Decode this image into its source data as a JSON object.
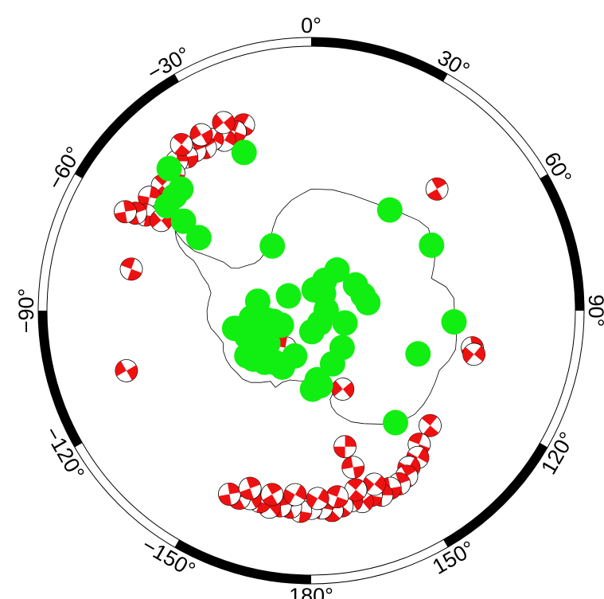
{
  "map": {
    "projection": "south-polar-stereographic",
    "colors": {
      "frame_dark": "#000000",
      "frame_light": "#ffffff",
      "coastline": "#000000",
      "station": "#11ee11",
      "beachball_fill": "#ee1111",
      "beachball_outline": "#000000"
    },
    "longitude_labels": [
      {
        "lon": 0,
        "text": "0°"
      },
      {
        "lon": 30,
        "text": "30°"
      },
      {
        "lon": 60,
        "text": "60°"
      },
      {
        "lon": 90,
        "text": "90°"
      },
      {
        "lon": 120,
        "text": "120°"
      },
      {
        "lon": 150,
        "text": "150°"
      },
      {
        "lon": 180,
        "text": "180°"
      },
      {
        "lon": -150,
        "text": "−150°"
      },
      {
        "lon": -120,
        "text": "−120°"
      },
      {
        "lon": -90,
        "text": "−90°"
      },
      {
        "lon": -60,
        "text": "−60°"
      },
      {
        "lon": -30,
        "text": "−30°"
      }
    ],
    "stations": [
      {
        "lon": -23.0,
        "lat": -62.0
      },
      {
        "lon": -45.0,
        "lat": -57.5
      },
      {
        "lon": -50.0,
        "lat": -61.0
      },
      {
        "lon": -47.0,
        "lat": -61.0
      },
      {
        "lon": -54.0,
        "lat": -61.0
      },
      {
        "lon": -55.0,
        "lat": -64.5
      },
      {
        "lon": -57.0,
        "lat": -68.0
      },
      {
        "lon": -31.0,
        "lat": -77.5
      },
      {
        "lon": 38.0,
        "lat": -69.0
      },
      {
        "lon": 61.5,
        "lat": -67.5
      },
      {
        "lon": 8.0,
        "lat": -86.5
      },
      {
        "lon": 24.0,
        "lat": -84.5
      },
      {
        "lon": 32.5,
        "lat": -82.0
      },
      {
        "lon": -57.0,
        "lat": -85.5
      },
      {
        "lon": -106.0,
        "lat": -83.5
      },
      {
        "lon": -127.0,
        "lat": -81.0
      },
      {
        "lon": -80.0,
        "lat": -81.0
      },
      {
        "lon": 88.0,
        "lat": -87.5
      },
      {
        "lon": 36.0,
        "lat": -86.5
      },
      {
        "lon": 60.0,
        "lat": -81.5
      },
      {
        "lon": 73.5,
        "lat": -81.0
      },
      {
        "lon": -107.0,
        "lat": -79.0
      },
      {
        "lon": -102.0,
        "lat": -82.5
      },
      {
        "lon": -115.0,
        "lat": -81.5
      },
      {
        "lon": -97.0,
        "lat": -80.0
      },
      {
        "lon": -112.0,
        "lat": -78.5
      },
      {
        "lon": -120.0,
        "lat": -78.5
      },
      {
        "lon": -103.0,
        "lat": -77.0
      },
      {
        "lon": -125.0,
        "lat": -77.0
      },
      {
        "lon": -130.0,
        "lat": -77.5
      },
      {
        "lon": -138.0,
        "lat": -78.5
      },
      {
        "lon": -145.0,
        "lat": -79.5
      },
      {
        "lon": -153.0,
        "lat": -79.5
      },
      {
        "lon": -116.0,
        "lat": -84.5
      },
      {
        "lon": 145.0,
        "lat": -87.5
      },
      {
        "lon": 178.0,
        "lat": -86.5
      },
      {
        "lon": -160.0,
        "lat": -82.0
      },
      {
        "lon": 110.0,
        "lat": -84.0
      },
      {
        "lon": 82.0,
        "lat": -80.5
      },
      {
        "lon": 140.0,
        "lat": -82.0
      },
      {
        "lon": 158.0,
        "lat": -80.5
      },
      {
        "lon": 173.0,
        "lat": -77.5
      },
      {
        "lon": 175.0,
        "lat": -78.5
      },
      {
        "lon": 179.0,
        "lat": -77.0
      },
      {
        "lon": 112.0,
        "lat": -71.0
      },
      {
        "lon": 94.5,
        "lat": -66.5
      },
      {
        "lon": 143.0,
        "lat": -67.0
      }
    ],
    "focal_mechanisms": [
      {
        "lon": -20,
        "lat": -58.0,
        "strike": 30
      },
      {
        "lon": -23,
        "lat": -58.5,
        "strike": 200
      },
      {
        "lon": -27,
        "lat": -59.0,
        "strike": 120
      },
      {
        "lon": -30,
        "lat": -58.0,
        "strike": 300
      },
      {
        "lon": -33,
        "lat": -58.5,
        "strike": 60
      },
      {
        "lon": -36,
        "lat": -58.0,
        "strike": 250
      },
      {
        "lon": -39,
        "lat": -58.0,
        "strike": 170
      },
      {
        "lon": -42,
        "lat": -57.5,
        "strike": 90
      },
      {
        "lon": -45,
        "lat": -58.5,
        "strike": 10
      },
      {
        "lon": -25,
        "lat": -56.5,
        "strike": 140
      },
      {
        "lon": -32,
        "lat": -56.5,
        "strike": 330
      },
      {
        "lon": -38,
        "lat": -56.0,
        "strike": 220
      },
      {
        "lon": -50,
        "lat": -58.5,
        "strike": 45
      },
      {
        "lon": -55,
        "lat": -58.0,
        "strike": 280
      },
      {
        "lon": -57,
        "lat": -61.0,
        "strike": 100
      },
      {
        "lon": -60,
        "lat": -59.0,
        "strike": 190
      },
      {
        "lon": -61,
        "lat": -57.5,
        "strike": 70
      },
      {
        "lon": -62,
        "lat": -56.0,
        "strike": 260
      },
      {
        "lon": -59,
        "lat": -61.5,
        "strike": 320
      },
      {
        "lon": -77,
        "lat": -60.0,
        "strike": 20
      },
      {
        "lon": -108,
        "lat": -58.5,
        "strike": 150
      },
      {
        "lon": 46,
        "lat": -61.5,
        "strike": 240
      },
      {
        "lon": 103,
        "lat": -63.0,
        "strike": 80
      },
      {
        "lon": 105,
        "lat": -62.5,
        "strike": 310
      },
      {
        "lon": 134,
        "lat": -63.0,
        "strike": 40
      },
      {
        "lon": 141,
        "lat": -62.0,
        "strike": 200
      },
      {
        "lon": 144,
        "lat": -60.5,
        "strike": 120
      },
      {
        "lon": 148,
        "lat": -60.0,
        "strike": 300
      },
      {
        "lon": 150,
        "lat": -59.0,
        "strike": 60
      },
      {
        "lon": 153,
        "lat": -58.5,
        "strike": 250
      },
      {
        "lon": 156,
        "lat": -58.5,
        "strike": 170
      },
      {
        "lon": 159,
        "lat": -58.0,
        "strike": 90
      },
      {
        "lon": 162,
        "lat": -58.5,
        "strike": 10
      },
      {
        "lon": 165,
        "lat": -58.0,
        "strike": 140
      },
      {
        "lon": 168,
        "lat": -58.5,
        "strike": 330
      },
      {
        "lon": 171,
        "lat": -58.0,
        "strike": 220
      },
      {
        "lon": 174,
        "lat": -57.5,
        "strike": 45
      },
      {
        "lon": 177,
        "lat": -58.0,
        "strike": 280
      },
      {
        "lon": -180,
        "lat": -58.0,
        "strike": 100
      },
      {
        "lon": -177,
        "lat": -57.5,
        "strike": 190
      },
      {
        "lon": -174,
        "lat": -58.0,
        "strike": 70
      },
      {
        "lon": -171,
        "lat": -58.0,
        "strike": 260
      },
      {
        "lon": -168,
        "lat": -57.5,
        "strike": 320
      },
      {
        "lon": -165,
        "lat": -58.0,
        "strike": 20
      },
      {
        "lon": -162,
        "lat": -58.0,
        "strike": 150
      },
      {
        "lon": -159,
        "lat": -57.5,
        "strike": 240
      },
      {
        "lon": -156,
        "lat": -57.5,
        "strike": 80
      },
      {
        "lon": 160,
        "lat": -60.0,
        "strike": 310
      },
      {
        "lon": 166,
        "lat": -60.0,
        "strike": 40
      },
      {
        "lon": 172,
        "lat": -59.5,
        "strike": 200
      },
      {
        "lon": 178,
        "lat": -59.5,
        "strike": 120
      },
      {
        "lon": -175,
        "lat": -60.0,
        "strike": 300
      },
      {
        "lon": -168,
        "lat": -59.5,
        "strike": 60
      },
      {
        "lon": -161,
        "lat": -59.5,
        "strike": 250
      },
      {
        "lon": 165,
        "lat": -63.5,
        "strike": 170
      },
      {
        "lon": 166,
        "lat": -67.0,
        "strike": 90
      },
      {
        "lon": -145,
        "lat": -82.5,
        "strike": 10
      },
      {
        "lon": 158,
        "lat": -76.0,
        "strike": 140
      }
    ],
    "coastline": [
      [
        0,
        -70.0
      ],
      [
        10,
        -69.8
      ],
      [
        20,
        -69.8
      ],
      [
        30,
        -69.5
      ],
      [
        40,
        -68.5
      ],
      [
        50,
        -67.0
      ],
      [
        55,
        -66.5
      ],
      [
        60,
        -67.2
      ],
      [
        65,
        -67.5
      ],
      [
        70,
        -68.5
      ],
      [
        75,
        -69.5
      ],
      [
        80,
        -67.5
      ],
      [
        85,
        -66.5
      ],
      [
        90,
        -66.5
      ],
      [
        95,
        -66.3
      ],
      [
        100,
        -65.8
      ],
      [
        105,
        -65.5
      ],
      [
        110,
        -66.0
      ],
      [
        115,
        -66.8
      ],
      [
        120,
        -66.5
      ],
      [
        125,
        -66.2
      ],
      [
        130,
        -66.0
      ],
      [
        135,
        -66.0
      ],
      [
        140,
        -66.5
      ],
      [
        145,
        -67.2
      ],
      [
        150,
        -68.5
      ],
      [
        155,
        -69.5
      ],
      [
        160,
        -70.5
      ],
      [
        163,
        -71.5
      ],
      [
        166,
        -72.5
      ],
      [
        168,
        -73.8
      ],
      [
        168,
        -75.0
      ],
      [
        163,
        -76.5
      ],
      [
        165,
        -77.5
      ],
      [
        168,
        -78.0
      ],
      [
        172,
        -78.3
      ],
      [
        176,
        -78.5
      ],
      [
        180,
        -78.4
      ],
      [
        -175,
        -78.3
      ],
      [
        -170,
        -78.2
      ],
      [
        -163,
        -78.0
      ],
      [
        -158,
        -77.2
      ],
      [
        -155,
        -76.0
      ],
      [
        -150,
        -76.5
      ],
      [
        -145,
        -75.5
      ],
      [
        -140,
        -74.5
      ],
      [
        -135,
        -74.0
      ],
      [
        -130,
        -74.0
      ],
      [
        -125,
        -73.8
      ],
      [
        -120,
        -73.8
      ],
      [
        -115,
        -74.0
      ],
      [
        -110,
        -74.5
      ],
      [
        -105,
        -74.0
      ],
      [
        -100,
        -73.2
      ],
      [
        -95,
        -72.8
      ],
      [
        -90,
        -72.8
      ],
      [
        -85,
        -73.0
      ],
      [
        -80,
        -73.2
      ],
      [
        -76,
        -72.5
      ],
      [
        -72,
        -71.0
      ],
      [
        -69,
        -70.0
      ],
      [
        -67,
        -69.0
      ],
      [
        -66,
        -67.5
      ],
      [
        -64,
        -66.0
      ],
      [
        -62,
        -65.0
      ],
      [
        -59,
        -64.0
      ],
      [
        -57,
        -63.5
      ],
      [
        -60,
        -64.5
      ],
      [
        -62,
        -66.5
      ],
      [
        -63,
        -68.5
      ],
      [
        -62,
        -71.0
      ],
      [
        -61,
        -73.5
      ],
      [
        -62,
        -75.0
      ],
      [
        -60,
        -76.0
      ],
      [
        -55,
        -77.0
      ],
      [
        -50,
        -77.8
      ],
      [
        -45,
        -78.0
      ],
      [
        -40,
        -77.8
      ],
      [
        -35,
        -77.5
      ],
      [
        -30,
        -76.5
      ],
      [
        -25,
        -75.0
      ],
      [
        -20,
        -73.5
      ],
      [
        -15,
        -72.5
      ],
      [
        -10,
        -71.5
      ],
      [
        -5,
        -70.8
      ],
      [
        0,
        -70.0
      ]
    ]
  }
}
